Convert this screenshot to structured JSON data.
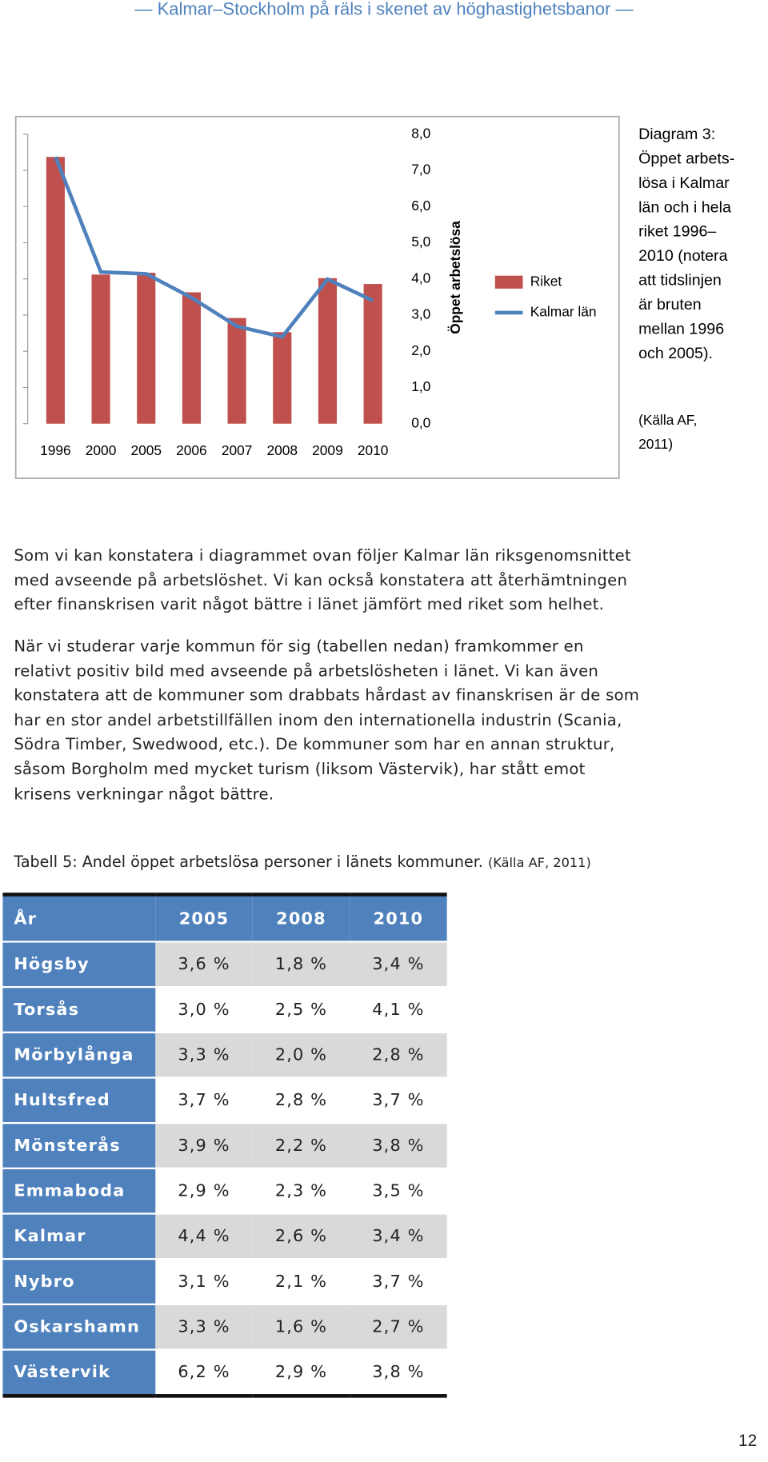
{
  "header": "— Kalmar–Stockholm på räls i skenet av höghastighetsbanor —",
  "chart_data": {
    "type": "bar-line",
    "categories": [
      "1996",
      "2000",
      "2005",
      "2006",
      "2007",
      "2008",
      "2009",
      "2010"
    ],
    "series": [
      {
        "name": "Riket",
        "type": "bar",
        "color": "#c0504d",
        "values": [
          7.37,
          4.12,
          4.17,
          3.63,
          2.92,
          2.53,
          4.02,
          3.86
        ]
      },
      {
        "name": "Kalmar län",
        "type": "line",
        "color": "#4f81bd",
        "values": [
          7.37,
          4.19,
          4.14,
          3.48,
          2.69,
          2.4,
          3.99,
          3.4
        ]
      }
    ],
    "y_label": "Öppet arbetslösa",
    "ylim": [
      0,
      8
    ],
    "yticks": [
      {
        "value": 0,
        "label": "0,0"
      },
      {
        "value": 1,
        "label": "1,0"
      },
      {
        "value": 2,
        "label": "2,0"
      },
      {
        "value": 3,
        "label": "3,0"
      },
      {
        "value": 4,
        "label": "4,0"
      },
      {
        "value": 5,
        "label": "5,0"
      },
      {
        "value": 6,
        "label": "6,0"
      },
      {
        "value": 7,
        "label": "7,0"
      },
      {
        "value": 8,
        "label": "8,0"
      }
    ],
    "grid": false,
    "caption": [
      "Diagram 3:",
      "Öppet arbets-",
      "lösa i Kalmar",
      "län och i hela",
      "riket 1996–",
      "2010 (notera",
      "att tidslinjen",
      "är bruten",
      "mellan 1996",
      "och 2005)."
    ],
    "source": [
      "(Källa AF,",
      "2011)"
    ]
  },
  "paragraphs": [
    [
      "Som vi kan konstatera i diagrammet ovan följer Kalmar län riksgenomsnittet",
      "med avseende på arbetslöshet. Vi kan också konstatera att återhämtningen",
      "efter finanskrisen varit något bättre i länet jämfört med riket som helhet."
    ],
    [
      "När vi studerar varje kommun för sig (tabellen nedan) framkommer en",
      "relativt positiv bild med avseende på arbetslösheten i länet. Vi kan även",
      "konstatera att de kommuner som drabbats hårdast av finanskrisen är de som",
      "har en stor andel arbetstillfällen inom den internationella industrin (Scania,",
      "Södra Timber, Swedwood, etc.). De kommuner som har en annan struktur,",
      "såsom Borgholm med mycket turism (liksom Västervik), har stått emot",
      "krisens verkningar något bättre."
    ]
  ],
  "table_caption": {
    "text": "Tabell 5: Andel öppet arbetslösa personer i länets kommuner.",
    "source": "(Källa AF, 2011)"
  },
  "table": {
    "header": [
      "År",
      "2005",
      "2008",
      "2010"
    ],
    "rows": [
      [
        "Högsby",
        "3,6 %",
        "1,8 %",
        "3,4 %"
      ],
      [
        "Torsås",
        "3,0 %",
        "2,5 %",
        "4,1 %"
      ],
      [
        "Mörbylånga",
        "3,3 %",
        "2,0 %",
        "2,8 %"
      ],
      [
        "Hultsfred",
        "3,7 %",
        "2,8 %",
        "3,7 %"
      ],
      [
        "Mönsterås",
        "3,9 %",
        "2,2 %",
        "3,8 %"
      ],
      [
        "Emmaboda",
        "2,9 %",
        "2,3 %",
        "3,5 %"
      ],
      [
        "Kalmar",
        "4,4 %",
        "2,6 %",
        "3,4 %"
      ],
      [
        "Nybro",
        "3,1 %",
        "2,1 %",
        "3,7 %"
      ],
      [
        "Oskarshamn",
        "3,3 %",
        "1,6 %",
        "2,7 %"
      ],
      [
        "Västervik",
        "6,2 %",
        "2,9 %",
        "3,8 %"
      ]
    ]
  },
  "page_number": "12"
}
